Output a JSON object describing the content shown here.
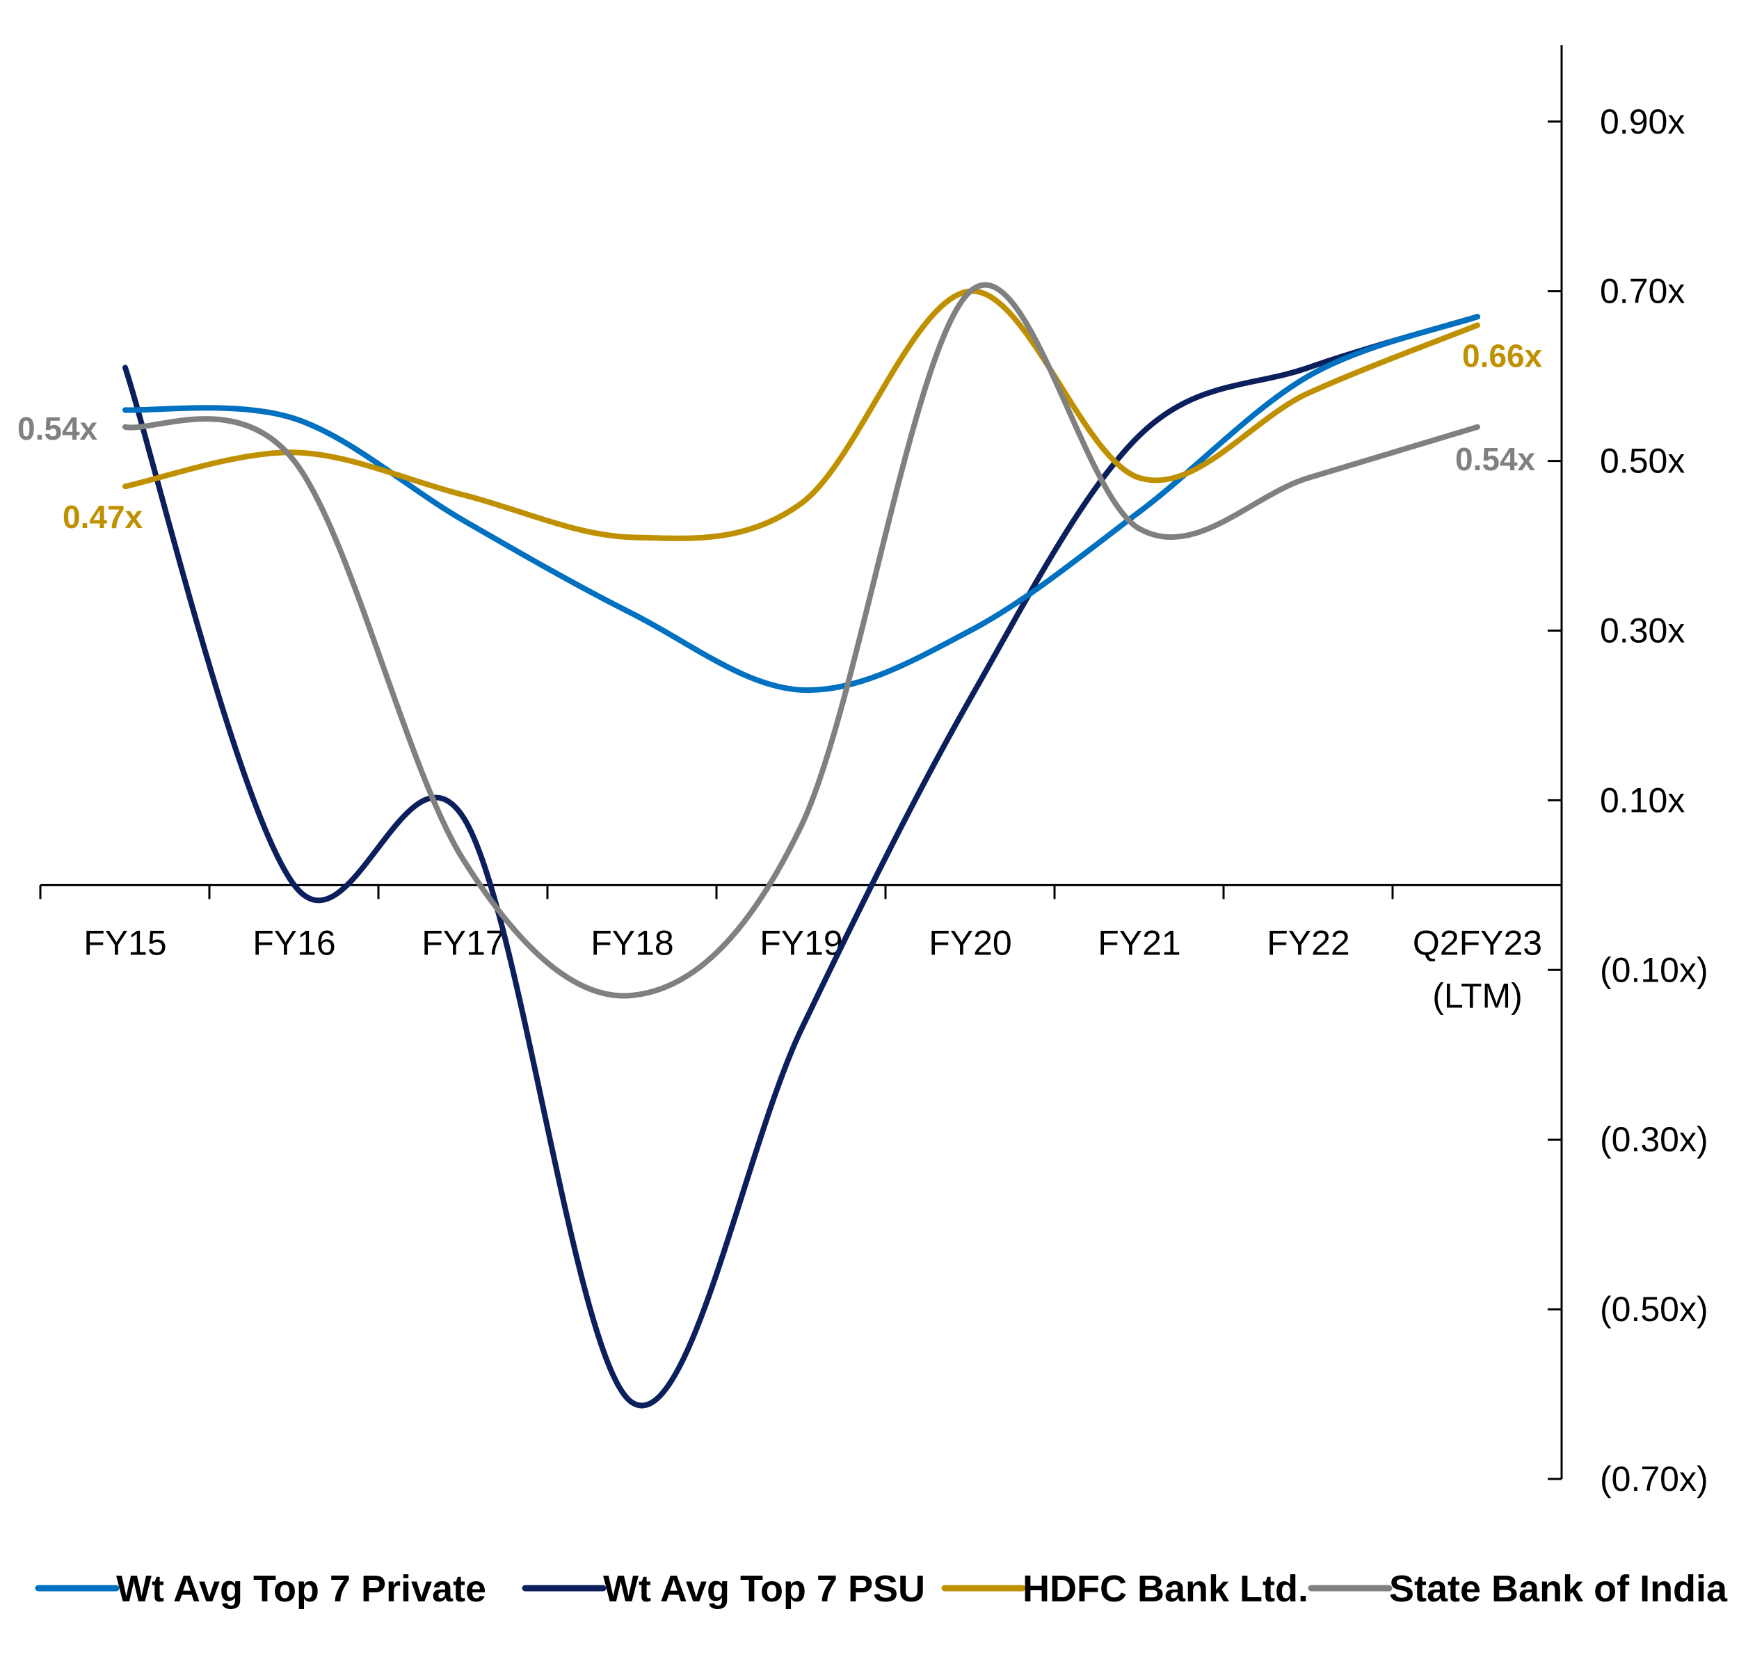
{
  "chart_data": {
    "type": "line",
    "title": "",
    "xlabel": "",
    "ylabel": "",
    "categories": [
      "FY15",
      "FY16",
      "FY17",
      "FY18",
      "FY19",
      "FY20",
      "FY21",
      "FY22",
      "Q2FY23 (LTM)"
    ],
    "ylim": [
      -0.7,
      0.99
    ],
    "y_axis_position": "right",
    "y_ticks": [
      0.9,
      0.7,
      0.5,
      0.3,
      0.1,
      -0.1,
      -0.3,
      -0.5,
      -0.7
    ],
    "y_tick_labels": [
      "0.90x",
      "0.70x",
      "0.50x",
      "0.30x",
      "0.10x",
      "(0.10x)",
      "(0.30x)",
      "(0.50x)",
      "(0.70x)"
    ],
    "grid": false,
    "legend_position": "bottom",
    "series": [
      {
        "name": "Wt Avg Top 7 Private",
        "color": "#0070C0",
        "values": [
          0.56,
          0.55,
          0.43,
          0.32,
          0.23,
          0.3,
          0.44,
          0.6,
          0.67
        ]
      },
      {
        "name": "Wt Avg Top 7 PSU",
        "color": "#0B1F5C",
        "values": [
          0.61,
          0.0,
          0.08,
          -0.61,
          -0.17,
          0.22,
          0.53,
          0.61,
          0.67
        ]
      },
      {
        "name": "HDFC Bank Ltd.",
        "color": "#BF9000",
        "values": [
          0.47,
          0.51,
          0.46,
          0.41,
          0.45,
          0.7,
          0.48,
          0.58,
          0.66
        ]
      },
      {
        "name": "State Bank of India",
        "color": "#808080",
        "values": [
          0.54,
          0.5,
          0.03,
          -0.13,
          0.07,
          0.7,
          0.42,
          0.48,
          0.54
        ]
      }
    ],
    "annotations": [
      {
        "text": "0.54x",
        "series": "State Bank of India",
        "point": "first"
      },
      {
        "text": "0.47x",
        "series": "HDFC Bank Ltd.",
        "point": "first"
      },
      {
        "text": "0.66x",
        "series": "HDFC Bank Ltd.",
        "point": "last"
      },
      {
        "text": "0.54x",
        "series": "State Bank of India",
        "point": "last"
      }
    ]
  }
}
